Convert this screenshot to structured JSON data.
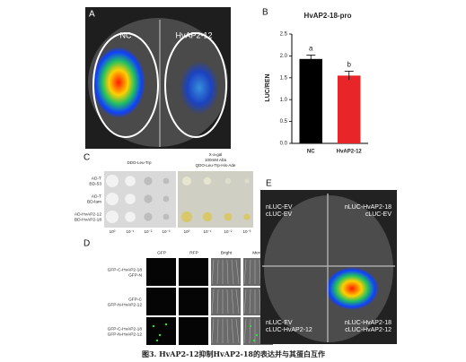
{
  "figure": {
    "panel_a": {
      "label": "A",
      "left": "NC",
      "right": "HvAP2-12"
    },
    "panel_b": {
      "label": "B"
    },
    "panel_c": {
      "label": "C",
      "header_left": "DDO-Leu-Trp",
      "header_right": [
        "X-a-gal",
        "100mM Aba",
        "QDO-Leu-Trp-His-Ade"
      ],
      "rows": [
        [
          "AD-T",
          "BD-53"
        ],
        [
          "AD-T",
          "BD-lam"
        ],
        [
          "AD-HvAP2-12",
          "BD-HvAP2-18"
        ]
      ],
      "dilutions": [
        "10⁰",
        "10⁻¹",
        "10⁻²",
        "10⁻³"
      ]
    },
    "panel_d": {
      "label": "D",
      "columns": [
        "GFP",
        "RFP",
        "Bright",
        "Merge"
      ],
      "rows": [
        [
          "GFP-C-HvAP2-18",
          "GFP-N"
        ],
        [
          "GFP-C",
          "GFP-N-HvAP2-12"
        ],
        [
          "GFP-C-HvAP2-18",
          "GFP-N-HvAP2-12"
        ]
      ]
    },
    "panel_e": {
      "label": "E",
      "quadrants": [
        [
          "nLUC-EV",
          "cLUC-EV"
        ],
        [
          "nLUC-HvAP2-18",
          "cLUC-EV"
        ],
        [
          "nLUC-EV",
          "cLUC-HvAP2-12"
        ],
        [
          "nLUC-HvAP2-18",
          "cLUC-HvAP2-12"
        ]
      ]
    },
    "caption": "图3. HvAP2-12抑制HvAP2-18的表达并与其蛋白互作"
  },
  "chart_data": {
    "type": "bar",
    "title": "HvAP2-18-pro",
    "y_label": "LUC/REN",
    "categories": [
      "NC",
      "HvAP2-12"
    ],
    "series": [
      {
        "name": "LUC/REN",
        "values": [
          1.93,
          1.55
        ],
        "errors": [
          0.09,
          0.1
        ],
        "colors": [
          "#000000",
          "#e8262a"
        ],
        "annotations": [
          "a",
          "b"
        ]
      }
    ],
    "ylim": [
      0,
      2.5
    ],
    "yticks": [
      {
        "value": 0,
        "label": "0.0"
      },
      {
        "value": 0.5,
        "label": "0.5"
      },
      {
        "value": 1,
        "label": "1.0"
      },
      {
        "value": 1.5,
        "label": "1.5"
      },
      {
        "value": 2,
        "label": "2.0"
      },
      {
        "value": 2.5,
        "label": "2.5"
      }
    ]
  }
}
